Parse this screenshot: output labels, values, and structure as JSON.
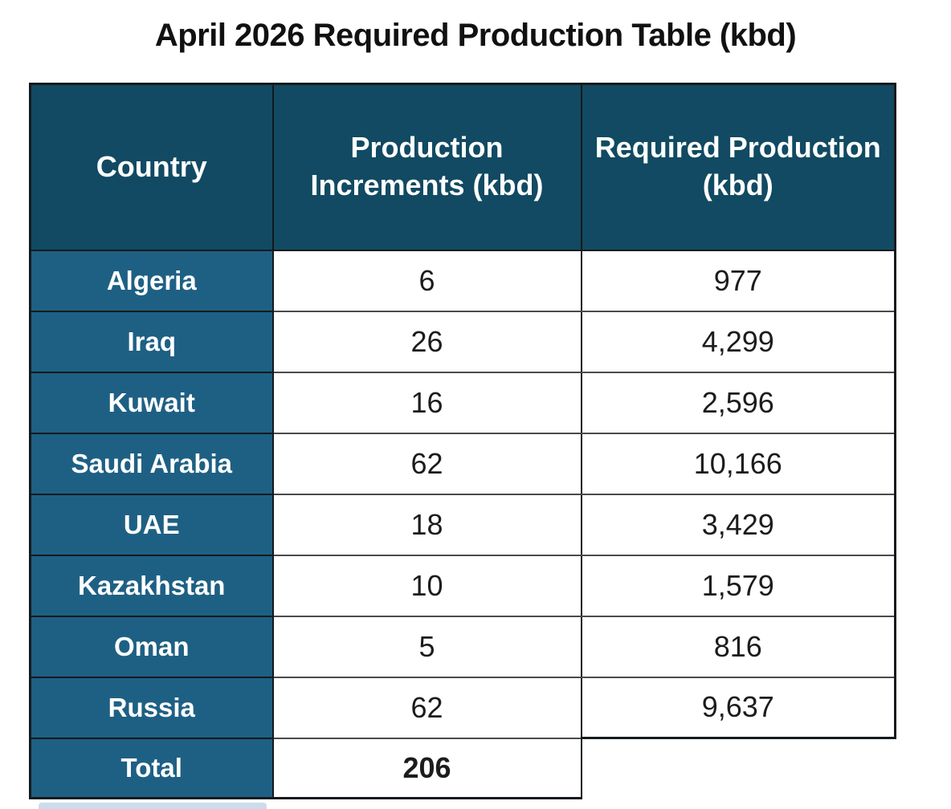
{
  "title": "April 2026 Required Production Table (kbd)",
  "table": {
    "columns": [
      "Country",
      "Production Increments (kbd)",
      "Required Production (kbd)"
    ],
    "rows": [
      {
        "country": "Algeria",
        "increment": "6",
        "required": "977"
      },
      {
        "country": "Iraq",
        "increment": "26",
        "required": "4,299"
      },
      {
        "country": "Kuwait",
        "increment": "16",
        "required": "2,596"
      },
      {
        "country": "Saudi Arabia",
        "increment": "62",
        "required": "10,166"
      },
      {
        "country": "UAE",
        "increment": "18",
        "required": "3,429"
      },
      {
        "country": "Kazakhstan",
        "increment": "10",
        "required": "1,579"
      },
      {
        "country": "Oman",
        "increment": "5",
        "required": "816"
      },
      {
        "country": "Russia",
        "increment": "62",
        "required": "9,637"
      }
    ],
    "total": {
      "label": "Total",
      "increment": "206"
    }
  },
  "chart_data": {
    "type": "table",
    "title": "April 2026 Required Production Table (kbd)",
    "columns": [
      "Country",
      "Production Increments (kbd)",
      "Required Production (kbd)"
    ],
    "rows": [
      [
        "Algeria",
        6,
        977
      ],
      [
        "Iraq",
        26,
        4299
      ],
      [
        "Kuwait",
        16,
        2596
      ],
      [
        "Saudi Arabia",
        62,
        10166
      ],
      [
        "UAE",
        18,
        3429
      ],
      [
        "Kazakhstan",
        10,
        1579
      ],
      [
        "Oman",
        5,
        816
      ],
      [
        "Russia",
        62,
        9637
      ]
    ],
    "total_row": [
      "Total",
      206,
      null
    ],
    "units": "kbd"
  },
  "colors": {
    "header_bg": "#114A62",
    "country_bg": "#1E6084",
    "header_text": "#FFFFFF",
    "cell_bg": "#FFFFFF",
    "cell_text": "#1C1C1C",
    "border_dark": "#141A1E",
    "border_gray": "#4A4A4A",
    "title_text": "#111111",
    "artifact_blue": "#CDDCEA"
  }
}
